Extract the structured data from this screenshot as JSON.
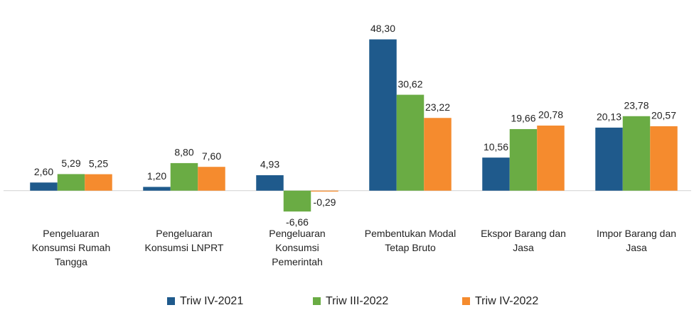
{
  "chart_data": {
    "type": "bar",
    "categories": [
      [
        "Pengeluaran",
        "Konsumsi Rumah",
        "Tangga"
      ],
      [
        "Pengeluaran",
        "Konsumsi LNPRT"
      ],
      [
        "Pengeluaran",
        "Konsumsi",
        "Pemerintah"
      ],
      [
        "Pembentukan Modal",
        "Tetap Bruto"
      ],
      [
        "Ekspor Barang dan",
        "Jasa"
      ],
      [
        "Impor Barang dan",
        "Jasa"
      ]
    ],
    "series": [
      {
        "name": "Triw IV-2021",
        "color": "#1f5a8c",
        "values": [
          2.6,
          1.2,
          4.93,
          48.3,
          10.56,
          20.13
        ],
        "value_labels": [
          "2,60",
          "1,20",
          "4,93",
          "48,30",
          "10,56",
          "20,13"
        ]
      },
      {
        "name": "Triw III-2022",
        "color": "#6aac44",
        "values": [
          5.29,
          8.8,
          -6.66,
          30.62,
          19.66,
          23.78
        ],
        "value_labels": [
          "5,29",
          "8,80",
          "-6,66",
          "30,62",
          "19,66",
          "23,78"
        ]
      },
      {
        "name": "Triw IV-2022",
        "color": "#f58b2e",
        "values": [
          5.25,
          7.6,
          -0.29,
          23.22,
          20.78,
          20.57
        ],
        "value_labels": [
          "5,25",
          "7,60",
          "-0,29",
          "23,22",
          "20,78",
          "20,57"
        ]
      }
    ],
    "ylim": [
      -15,
      50
    ],
    "legend": "bottom"
  }
}
